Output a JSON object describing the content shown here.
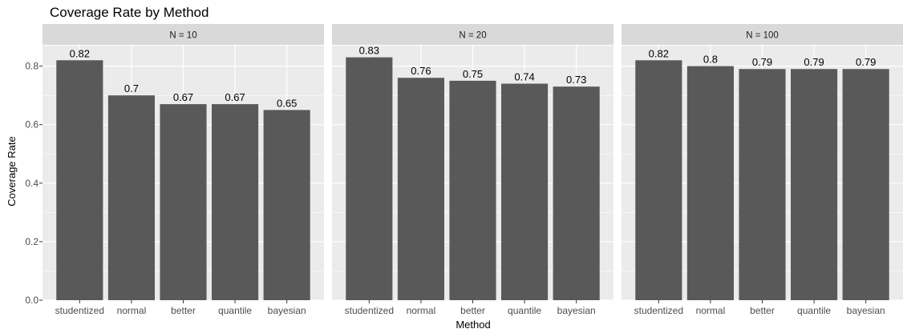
{
  "chart_data": {
    "type": "bar",
    "title": "Coverage Rate by Method",
    "xlabel": "Method",
    "ylabel": "Coverage Rate",
    "ylim": [
      0,
      0.87
    ],
    "yticks": [
      "0.0",
      "0.2",
      "0.4",
      "0.6",
      "0.8"
    ],
    "categories": [
      "studentized",
      "normal",
      "better",
      "quantile",
      "bayesian"
    ],
    "grid": true,
    "facets": [
      {
        "label": "N = 10",
        "values": [
          0.82,
          0.7,
          0.67,
          0.67,
          0.65
        ],
        "data_labels": [
          "0.82",
          "0.7",
          "0.67",
          "0.67",
          "0.65"
        ]
      },
      {
        "label": "N = 20",
        "values": [
          0.83,
          0.76,
          0.75,
          0.74,
          0.73
        ],
        "data_labels": [
          "0.83",
          "0.76",
          "0.75",
          "0.74",
          "0.73"
        ]
      },
      {
        "label": "N = 100",
        "values": [
          0.82,
          0.8,
          0.79,
          0.79,
          0.79
        ],
        "data_labels": [
          "0.82",
          "0.8",
          "0.79",
          "0.79",
          "0.79"
        ]
      }
    ],
    "colors": {
      "bar": "#595959",
      "panel": "#ebebeb",
      "strip": "#d9d9d9",
      "grid": "#ffffff"
    }
  }
}
